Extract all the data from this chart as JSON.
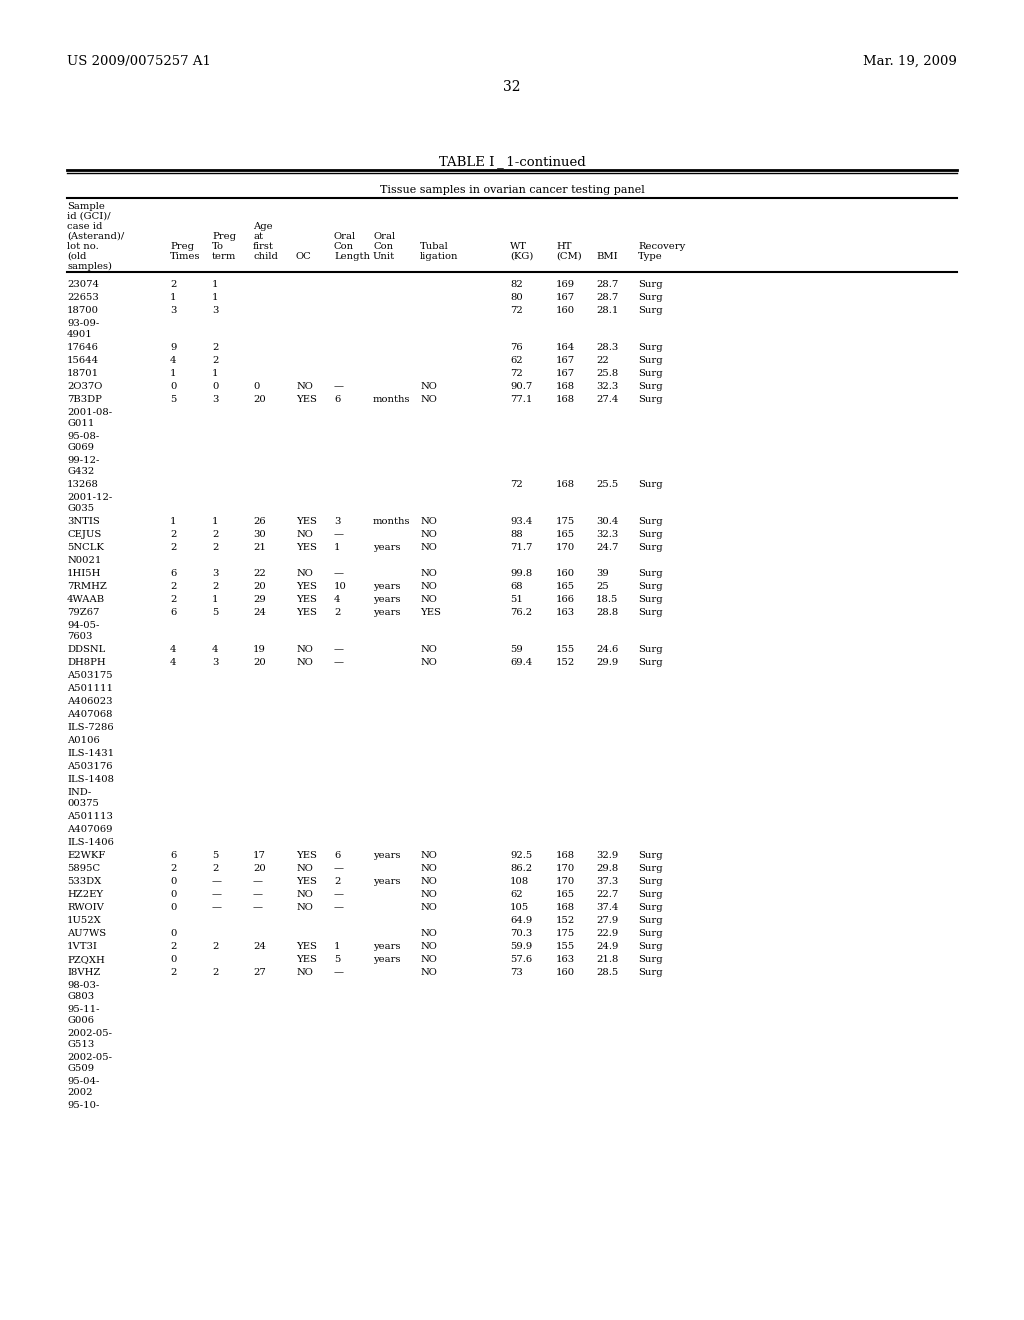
{
  "header_left": "US 2009/0075257 A1",
  "header_right": "Mar. 19, 2009",
  "page_number": "32",
  "table_title": "TABLE I _ 1-continued",
  "table_subtitle": "Tissue samples in ovarian cancer testing panel",
  "col_headers_line1": [
    "Sample",
    "",
    "",
    "Age",
    "",
    "Oral",
    "Oral",
    "",
    "WT",
    "HT",
    "",
    "Recovery"
  ],
  "col_headers_line2": [
    "id (GCI)/",
    "",
    "Preg",
    "at",
    "",
    "Con",
    "Con",
    "Tubal",
    "(KG)",
    "(CM)",
    "",
    "Type"
  ],
  "col_headers_line3": [
    "case id",
    "Preg",
    "To",
    "first",
    "OC",
    "Length",
    "Unit",
    "ligation",
    "",
    "",
    "BMI",
    ""
  ],
  "col_headers_line4": [
    "(Asterand)/",
    "Times",
    "term",
    "child",
    "",
    "",
    "",
    "",
    "",
    "",
    "",
    ""
  ],
  "col_headers_line5": [
    "lot no.",
    "",
    "",
    "",
    "",
    "",
    "",
    "",
    "",
    "",
    "",
    ""
  ],
  "col_headers_line6": [
    "(old",
    "",
    "",
    "",
    "",
    "",
    "",
    "",
    "",
    "",
    "",
    ""
  ],
  "col_headers_line7": [
    "samples)",
    "",
    "",
    "",
    "",
    "",
    "",
    "",
    "",
    "",
    "",
    ""
  ],
  "rows": [
    {
      "id": [
        "23074"
      ],
      "preg_times": "2",
      "preg_term": "1",
      "age": "",
      "oc": "",
      "oral_len": "",
      "oral_unit": "",
      "tubal": "",
      "wt": "82",
      "ht": "169",
      "bmi": "28.7",
      "rec": "Surg"
    },
    {
      "id": [
        "22653"
      ],
      "preg_times": "1",
      "preg_term": "1",
      "age": "",
      "oc": "",
      "oral_len": "",
      "oral_unit": "",
      "tubal": "",
      "wt": "80",
      "ht": "167",
      "bmi": "28.7",
      "rec": "Surg"
    },
    {
      "id": [
        "18700"
      ],
      "preg_times": "3",
      "preg_term": "3",
      "age": "",
      "oc": "",
      "oral_len": "",
      "oral_unit": "",
      "tubal": "",
      "wt": "72",
      "ht": "160",
      "bmi": "28.1",
      "rec": "Surg"
    },
    {
      "id": [
        "93-09-",
        "4901"
      ],
      "preg_times": "",
      "preg_term": "",
      "age": "",
      "oc": "",
      "oral_len": "",
      "oral_unit": "",
      "tubal": "",
      "wt": "",
      "ht": "",
      "bmi": "",
      "rec": ""
    },
    {
      "id": [
        "17646"
      ],
      "preg_times": "9",
      "preg_term": "2",
      "age": "",
      "oc": "",
      "oral_len": "",
      "oral_unit": "",
      "tubal": "",
      "wt": "76",
      "ht": "164",
      "bmi": "28.3",
      "rec": "Surg"
    },
    {
      "id": [
        "15644"
      ],
      "preg_times": "4",
      "preg_term": "2",
      "age": "",
      "oc": "",
      "oral_len": "",
      "oral_unit": "",
      "tubal": "",
      "wt": "62",
      "ht": "167",
      "bmi": "22",
      "rec": "Surg"
    },
    {
      "id": [
        "18701"
      ],
      "preg_times": "1",
      "preg_term": "1",
      "age": "",
      "oc": "",
      "oral_len": "",
      "oral_unit": "",
      "tubal": "",
      "wt": "72",
      "ht": "167",
      "bmi": "25.8",
      "rec": "Surg"
    },
    {
      "id": [
        "2O37O"
      ],
      "preg_times": "0",
      "preg_term": "0",
      "age": "0",
      "oc": "NO",
      "oral_len": "—",
      "oral_unit": "",
      "tubal": "NO",
      "wt": "90.7",
      "ht": "168",
      "bmi": "32.3",
      "rec": "Surg"
    },
    {
      "id": [
        "7B3DP"
      ],
      "preg_times": "5",
      "preg_term": "3",
      "age": "20",
      "oc": "YES",
      "oral_len": "6",
      "oral_unit": "months",
      "tubal": "NO",
      "wt": "77.1",
      "ht": "168",
      "bmi": "27.4",
      "rec": "Surg"
    },
    {
      "id": [
        "2001-08-",
        "G011"
      ],
      "preg_times": "",
      "preg_term": "",
      "age": "",
      "oc": "",
      "oral_len": "",
      "oral_unit": "",
      "tubal": "",
      "wt": "",
      "ht": "",
      "bmi": "",
      "rec": ""
    },
    {
      "id": [
        "95-08-",
        "G069"
      ],
      "preg_times": "",
      "preg_term": "",
      "age": "",
      "oc": "",
      "oral_len": "",
      "oral_unit": "",
      "tubal": "",
      "wt": "",
      "ht": "",
      "bmi": "",
      "rec": ""
    },
    {
      "id": [
        "99-12-",
        "G432"
      ],
      "preg_times": "",
      "preg_term": "",
      "age": "",
      "oc": "",
      "oral_len": "",
      "oral_unit": "",
      "tubal": "",
      "wt": "",
      "ht": "",
      "bmi": "",
      "rec": ""
    },
    {
      "id": [
        "13268"
      ],
      "preg_times": "",
      "preg_term": "",
      "age": "",
      "oc": "",
      "oral_len": "",
      "oral_unit": "",
      "tubal": "",
      "wt": "72",
      "ht": "168",
      "bmi": "25.5",
      "rec": "Surg"
    },
    {
      "id": [
        "2001-12-",
        "G035"
      ],
      "preg_times": "",
      "preg_term": "",
      "age": "",
      "oc": "",
      "oral_len": "",
      "oral_unit": "",
      "tubal": "",
      "wt": "",
      "ht": "",
      "bmi": "",
      "rec": ""
    },
    {
      "id": [
        "3NTIS"
      ],
      "preg_times": "1",
      "preg_term": "1",
      "age": "26",
      "oc": "YES",
      "oral_len": "3",
      "oral_unit": "months",
      "tubal": "NO",
      "wt": "93.4",
      "ht": "175",
      "bmi": "30.4",
      "rec": "Surg"
    },
    {
      "id": [
        "CEJUS"
      ],
      "preg_times": "2",
      "preg_term": "2",
      "age": "30",
      "oc": "NO",
      "oral_len": "—",
      "oral_unit": "",
      "tubal": "NO",
      "wt": "88",
      "ht": "165",
      "bmi": "32.3",
      "rec": "Surg"
    },
    {
      "id": [
        "5NCLK"
      ],
      "preg_times": "2",
      "preg_term": "2",
      "age": "21",
      "oc": "YES",
      "oral_len": "1",
      "oral_unit": "years",
      "tubal": "NO",
      "wt": "71.7",
      "ht": "170",
      "bmi": "24.7",
      "rec": "Surg"
    },
    {
      "id": [
        "N0021"
      ],
      "preg_times": "",
      "preg_term": "",
      "age": "",
      "oc": "",
      "oral_len": "",
      "oral_unit": "",
      "tubal": "",
      "wt": "",
      "ht": "",
      "bmi": "",
      "rec": ""
    },
    {
      "id": [
        "1HI5H"
      ],
      "preg_times": "6",
      "preg_term": "3",
      "age": "22",
      "oc": "NO",
      "oral_len": "—",
      "oral_unit": "",
      "tubal": "NO",
      "wt": "99.8",
      "ht": "160",
      "bmi": "39",
      "rec": "Surg"
    },
    {
      "id": [
        "7RMHZ"
      ],
      "preg_times": "2",
      "preg_term": "2",
      "age": "20",
      "oc": "YES",
      "oral_len": "10",
      "oral_unit": "years",
      "tubal": "NO",
      "wt": "68",
      "ht": "165",
      "bmi": "25",
      "rec": "Surg"
    },
    {
      "id": [
        "4WAAB"
      ],
      "preg_times": "2",
      "preg_term": "1",
      "age": "29",
      "oc": "YES",
      "oral_len": "4",
      "oral_unit": "years",
      "tubal": "NO",
      "wt": "51",
      "ht": "166",
      "bmi": "18.5",
      "rec": "Surg"
    },
    {
      "id": [
        "79Z67"
      ],
      "preg_times": "6",
      "preg_term": "5",
      "age": "24",
      "oc": "YES",
      "oral_len": "2",
      "oral_unit": "years",
      "tubal": "YES",
      "wt": "76.2",
      "ht": "163",
      "bmi": "28.8",
      "rec": "Surg"
    },
    {
      "id": [
        "94-05-",
        "7603"
      ],
      "preg_times": "",
      "preg_term": "",
      "age": "",
      "oc": "",
      "oral_len": "",
      "oral_unit": "",
      "tubal": "",
      "wt": "",
      "ht": "",
      "bmi": "",
      "rec": ""
    },
    {
      "id": [
        "DDSNL"
      ],
      "preg_times": "4",
      "preg_term": "4",
      "age": "19",
      "oc": "NO",
      "oral_len": "—",
      "oral_unit": "",
      "tubal": "NO",
      "wt": "59",
      "ht": "155",
      "bmi": "24.6",
      "rec": "Surg"
    },
    {
      "id": [
        "DH8PH"
      ],
      "preg_times": "4",
      "preg_term": "3",
      "age": "20",
      "oc": "NO",
      "oral_len": "—",
      "oral_unit": "",
      "tubal": "NO",
      "wt": "69.4",
      "ht": "152",
      "bmi": "29.9",
      "rec": "Surg"
    },
    {
      "id": [
        "A503175"
      ],
      "preg_times": "",
      "preg_term": "",
      "age": "",
      "oc": "",
      "oral_len": "",
      "oral_unit": "",
      "tubal": "",
      "wt": "",
      "ht": "",
      "bmi": "",
      "rec": ""
    },
    {
      "id": [
        "A501111"
      ],
      "preg_times": "",
      "preg_term": "",
      "age": "",
      "oc": "",
      "oral_len": "",
      "oral_unit": "",
      "tubal": "",
      "wt": "",
      "ht": "",
      "bmi": "",
      "rec": ""
    },
    {
      "id": [
        "A406023"
      ],
      "preg_times": "",
      "preg_term": "",
      "age": "",
      "oc": "",
      "oral_len": "",
      "oral_unit": "",
      "tubal": "",
      "wt": "",
      "ht": "",
      "bmi": "",
      "rec": ""
    },
    {
      "id": [
        "A407068"
      ],
      "preg_times": "",
      "preg_term": "",
      "age": "",
      "oc": "",
      "oral_len": "",
      "oral_unit": "",
      "tubal": "",
      "wt": "",
      "ht": "",
      "bmi": "",
      "rec": ""
    },
    {
      "id": [
        "ILS-7286"
      ],
      "preg_times": "",
      "preg_term": "",
      "age": "",
      "oc": "",
      "oral_len": "",
      "oral_unit": "",
      "tubal": "",
      "wt": "",
      "ht": "",
      "bmi": "",
      "rec": ""
    },
    {
      "id": [
        "A0106"
      ],
      "preg_times": "",
      "preg_term": "",
      "age": "",
      "oc": "",
      "oral_len": "",
      "oral_unit": "",
      "tubal": "",
      "wt": "",
      "ht": "",
      "bmi": "",
      "rec": ""
    },
    {
      "id": [
        "ILS-1431"
      ],
      "preg_times": "",
      "preg_term": "",
      "age": "",
      "oc": "",
      "oral_len": "",
      "oral_unit": "",
      "tubal": "",
      "wt": "",
      "ht": "",
      "bmi": "",
      "rec": ""
    },
    {
      "id": [
        "A503176"
      ],
      "preg_times": "",
      "preg_term": "",
      "age": "",
      "oc": "",
      "oral_len": "",
      "oral_unit": "",
      "tubal": "",
      "wt": "",
      "ht": "",
      "bmi": "",
      "rec": ""
    },
    {
      "id": [
        "ILS-1408"
      ],
      "preg_times": "",
      "preg_term": "",
      "age": "",
      "oc": "",
      "oral_len": "",
      "oral_unit": "",
      "tubal": "",
      "wt": "",
      "ht": "",
      "bmi": "",
      "rec": ""
    },
    {
      "id": [
        "IND-",
        "00375"
      ],
      "preg_times": "",
      "preg_term": "",
      "age": "",
      "oc": "",
      "oral_len": "",
      "oral_unit": "",
      "tubal": "",
      "wt": "",
      "ht": "",
      "bmi": "",
      "rec": ""
    },
    {
      "id": [
        "A501113"
      ],
      "preg_times": "",
      "preg_term": "",
      "age": "",
      "oc": "",
      "oral_len": "",
      "oral_unit": "",
      "tubal": "",
      "wt": "",
      "ht": "",
      "bmi": "",
      "rec": ""
    },
    {
      "id": [
        "A407069"
      ],
      "preg_times": "",
      "preg_term": "",
      "age": "",
      "oc": "",
      "oral_len": "",
      "oral_unit": "",
      "tubal": "",
      "wt": "",
      "ht": "",
      "bmi": "",
      "rec": ""
    },
    {
      "id": [
        "ILS-1406"
      ],
      "preg_times": "",
      "preg_term": "",
      "age": "",
      "oc": "",
      "oral_len": "",
      "oral_unit": "",
      "tubal": "",
      "wt": "",
      "ht": "",
      "bmi": "",
      "rec": ""
    },
    {
      "id": [
        "E2WKF"
      ],
      "preg_times": "6",
      "preg_term": "5",
      "age": "17",
      "oc": "YES",
      "oral_len": "6",
      "oral_unit": "years",
      "tubal": "NO",
      "wt": "92.5",
      "ht": "168",
      "bmi": "32.9",
      "rec": "Surg"
    },
    {
      "id": [
        "5895C"
      ],
      "preg_times": "2",
      "preg_term": "2",
      "age": "20",
      "oc": "NO",
      "oral_len": "—",
      "oral_unit": "",
      "tubal": "NO",
      "wt": "86.2",
      "ht": "170",
      "bmi": "29.8",
      "rec": "Surg"
    },
    {
      "id": [
        "533DX"
      ],
      "preg_times": "0",
      "preg_term": "—",
      "age": "—",
      "oc": "YES",
      "oral_len": "2",
      "oral_unit": "years",
      "tubal": "NO",
      "wt": "108",
      "ht": "170",
      "bmi": "37.3",
      "rec": "Surg"
    },
    {
      "id": [
        "HZ2EY"
      ],
      "preg_times": "0",
      "preg_term": "—",
      "age": "—",
      "oc": "NO",
      "oral_len": "—",
      "oral_unit": "",
      "tubal": "NO",
      "wt": "62",
      "ht": "165",
      "bmi": "22.7",
      "rec": "Surg"
    },
    {
      "id": [
        "RWOIV"
      ],
      "preg_times": "0",
      "preg_term": "—",
      "age": "—",
      "oc": "NO",
      "oral_len": "—",
      "oral_unit": "",
      "tubal": "NO",
      "wt": "105",
      "ht": "168",
      "bmi": "37.4",
      "rec": "Surg"
    },
    {
      "id": [
        "1U52X"
      ],
      "preg_times": "",
      "preg_term": "",
      "age": "",
      "oc": "",
      "oral_len": "",
      "oral_unit": "",
      "tubal": "",
      "wt": "64.9",
      "ht": "152",
      "bmi": "27.9",
      "rec": "Surg"
    },
    {
      "id": [
        "AU7WS"
      ],
      "preg_times": "0",
      "preg_term": "",
      "age": "",
      "oc": "",
      "oral_len": "",
      "oral_unit": "",
      "tubal": "NO",
      "wt": "70.3",
      "ht": "175",
      "bmi": "22.9",
      "rec": "Surg"
    },
    {
      "id": [
        "1VT3I"
      ],
      "preg_times": "2",
      "preg_term": "2",
      "age": "24",
      "oc": "YES",
      "oral_len": "1",
      "oral_unit": "years",
      "tubal": "NO",
      "wt": "59.9",
      "ht": "155",
      "bmi": "24.9",
      "rec": "Surg"
    },
    {
      "id": [
        "PZQXH"
      ],
      "preg_times": "0",
      "preg_term": "",
      "age": "",
      "oc": "YES",
      "oral_len": "5",
      "oral_unit": "years",
      "tubal": "NO",
      "wt": "57.6",
      "ht": "163",
      "bmi": "21.8",
      "rec": "Surg"
    },
    {
      "id": [
        "I8VHZ"
      ],
      "preg_times": "2",
      "preg_term": "2",
      "age": "27",
      "oc": "NO",
      "oral_len": "—",
      "oral_unit": "",
      "tubal": "NO",
      "wt": "73",
      "ht": "160",
      "bmi": "28.5",
      "rec": "Surg"
    },
    {
      "id": [
        "98-03-",
        "G803"
      ],
      "preg_times": "",
      "preg_term": "",
      "age": "",
      "oc": "",
      "oral_len": "",
      "oral_unit": "",
      "tubal": "",
      "wt": "",
      "ht": "",
      "bmi": "",
      "rec": ""
    },
    {
      "id": [
        "95-11-",
        "G006"
      ],
      "preg_times": "",
      "preg_term": "",
      "age": "",
      "oc": "",
      "oral_len": "",
      "oral_unit": "",
      "tubal": "",
      "wt": "",
      "ht": "",
      "bmi": "",
      "rec": ""
    },
    {
      "id": [
        "2002-05-",
        "G513"
      ],
      "preg_times": "",
      "preg_term": "",
      "age": "",
      "oc": "",
      "oral_len": "",
      "oral_unit": "",
      "tubal": "",
      "wt": "",
      "ht": "",
      "bmi": "",
      "rec": ""
    },
    {
      "id": [
        "2002-05-",
        "G509"
      ],
      "preg_times": "",
      "preg_term": "",
      "age": "",
      "oc": "",
      "oral_len": "",
      "oral_unit": "",
      "tubal": "",
      "wt": "",
      "ht": "",
      "bmi": "",
      "rec": ""
    },
    {
      "id": [
        "95-04-",
        "2002"
      ],
      "preg_times": "",
      "preg_term": "",
      "age": "",
      "oc": "",
      "oral_len": "",
      "oral_unit": "",
      "tubal": "",
      "wt": "",
      "ht": "",
      "bmi": "",
      "rec": ""
    },
    {
      "id": [
        "95-10-"
      ],
      "preg_times": "",
      "preg_term": "",
      "age": "",
      "oc": "",
      "oral_len": "",
      "oral_unit": "",
      "tubal": "",
      "wt": "",
      "ht": "",
      "bmi": "",
      "rec": ""
    }
  ],
  "bg_color": "#ffffff",
  "text_color": "#000000",
  "font_size": 7.2,
  "header_font_size": 9.5
}
